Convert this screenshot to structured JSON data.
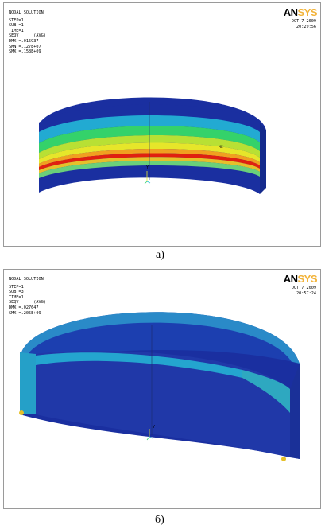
{
  "logo": {
    "an": "AN",
    "sys": "SYS"
  },
  "panel_a": {
    "info": [
      "NODAL SOLUTION",
      "",
      "STEP=1",
      "SUB =1",
      "TIME=1",
      "SEQV      (AVG)",
      "DMX =.015937",
      "SMN =.127E+07",
      "SMX =.158E+09"
    ],
    "date": "OCT  7 2009",
    "time": "20:29:56",
    "axis_label": "Y",
    "max_marker": "MX",
    "caption": "а)"
  },
  "panel_b": {
    "info": [
      "NODAL SOLUTION",
      "",
      "STEP=1",
      "SUB =3",
      "TIME=1",
      "SEQV      (AVG)",
      "DMX =.027647",
      "SMX =.205E+09"
    ],
    "date": "OCT  7 2009",
    "time": "20:57:24",
    "axis_label": "Y",
    "caption": "б)"
  },
  "colors": {
    "navy": "#1a2fa0",
    "cyan": "#25c0d8",
    "green": "#34d26a",
    "yellow": "#e6e62a",
    "orange": "#f0a020",
    "red": "#e02010",
    "logo_accent": "#f2b33a"
  }
}
